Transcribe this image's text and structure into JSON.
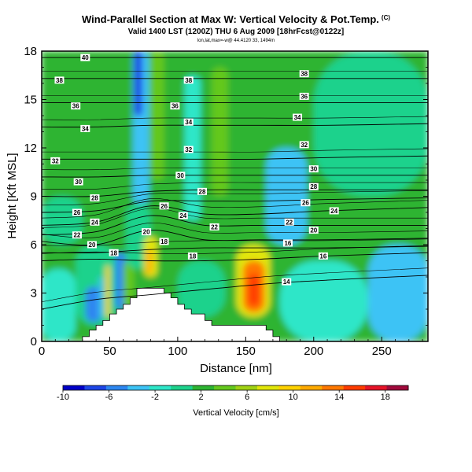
{
  "header": {
    "title": "Wind-Parallel Section at Max W: Vertical Velocity & Pot.Temp.",
    "title_mark": "(C)",
    "subtitle": "Valid 1400 LST (1200Z) THU 6 Aug 2009 [18hrFcst@0122z]",
    "info": "lon,lat,max=-w@ 44.4120 33, 1494m"
  },
  "chart_data": {
    "type": "heatmap",
    "title": "Wind-Parallel Section at Max W: Vertical Velocity & Pot.Temp.",
    "xlabel": "Distance [nm]",
    "ylabel": "Height [Kft MSL]",
    "xlim": [
      0,
      284
    ],
    "ylim": [
      0,
      18
    ],
    "x_ticks": [
      0,
      50,
      100,
      150,
      200,
      250
    ],
    "y_ticks": [
      0,
      3,
      6,
      9,
      12,
      15,
      18
    ],
    "colorbar": {
      "label": "Vertical Velocity [cm/s]",
      "tick_labels": [
        "-10",
        "-6",
        "-2",
        "2",
        "6",
        "10",
        "14",
        "18"
      ],
      "tick_values": [
        -10,
        -6,
        -2,
        2,
        6,
        10,
        14,
        18
      ],
      "range": [
        -10,
        20
      ],
      "colors": [
        "#0000c8",
        "#1e46e6",
        "#2d87f0",
        "#3cc3f5",
        "#2de6c8",
        "#1ed28c",
        "#2db432",
        "#64c81e",
        "#a0d214",
        "#e1e60a",
        "#ffd200",
        "#ffaa00",
        "#ff7800",
        "#ff3c00",
        "#e61428",
        "#a00a3c"
      ]
    },
    "terrain": [
      [
        0,
        0.0
      ],
      [
        10,
        0.0
      ],
      [
        20,
        0.0
      ],
      [
        30,
        0.3
      ],
      [
        35,
        0.7
      ],
      [
        40,
        1.0
      ],
      [
        45,
        1.3
      ],
      [
        50,
        1.7
      ],
      [
        55,
        2.0
      ],
      [
        60,
        2.3
      ],
      [
        65,
        2.7
      ],
      [
        70,
        3.3
      ],
      [
        75,
        3.3
      ],
      [
        80,
        3.3
      ],
      [
        85,
        3.3
      ],
      [
        90,
        3.0
      ],
      [
        95,
        2.7
      ],
      [
        100,
        2.3
      ],
      [
        105,
        2.0
      ],
      [
        110,
        1.7
      ],
      [
        115,
        1.7
      ],
      [
        120,
        1.3
      ],
      [
        125,
        1.0
      ],
      [
        130,
        1.0
      ],
      [
        135,
        1.0
      ],
      [
        140,
        1.0
      ],
      [
        145,
        1.0
      ],
      [
        150,
        1.0
      ],
      [
        155,
        1.0
      ],
      [
        160,
        1.0
      ],
      [
        165,
        0.7
      ],
      [
        170,
        0.3
      ],
      [
        175,
        0.0
      ],
      [
        284,
        0.0
      ]
    ],
    "theta_contours": [
      {
        "label": "14",
        "points": [
          [
            0,
            2.0
          ],
          [
            40,
            2.6
          ],
          [
            80,
            2.9
          ],
          [
            130,
            3.3
          ],
          [
            170,
            3.6
          ],
          [
            210,
            3.8
          ],
          [
            284,
            4.1
          ]
        ],
        "label_at": [
          180,
          3.7
        ]
      },
      {
        "label": "16",
        "points": [
          [
            0,
            5.0
          ],
          [
            40,
            5.1
          ],
          [
            80,
            5.0
          ],
          [
            120,
            5.0
          ],
          [
            160,
            5.1
          ],
          [
            210,
            5.3
          ],
          [
            284,
            5.5
          ]
        ],
        "label_at": [
          207,
          5.3
        ]
      },
      {
        "label": "18",
        "points": [
          [
            0,
            5.5
          ],
          [
            40,
            5.5
          ],
          [
            80,
            5.7
          ],
          [
            120,
            5.8
          ],
          [
            160,
            5.8
          ],
          [
            210,
            5.8
          ],
          [
            284,
            5.9
          ]
        ],
        "label_at": [
          118,
          5.8
        ]
      },
      {
        "label": "20",
        "points": [
          [
            0,
            6.2
          ],
          [
            40,
            6.0
          ],
          [
            80,
            6.9
          ],
          [
            120,
            6.3
          ],
          [
            160,
            6.3
          ],
          [
            210,
            6.3
          ],
          [
            284,
            6.4
          ]
        ],
        "label_at": [
          75,
          6.8
        ]
      },
      {
        "label": "22",
        "points": [
          [
            0,
            6.6
          ],
          [
            40,
            6.8
          ],
          [
            80,
            7.8
          ],
          [
            120,
            7.2
          ],
          [
            160,
            7.2
          ],
          [
            210,
            7.2
          ],
          [
            284,
            7.2
          ]
        ],
        "label_at": [
          127,
          7.1
        ]
      },
      {
        "label": "24",
        "points": [
          [
            0,
            7.2
          ],
          [
            40,
            7.4
          ],
          [
            80,
            8.4
          ],
          [
            120,
            7.9
          ],
          [
            160,
            7.9
          ],
          [
            210,
            8.1
          ],
          [
            284,
            8.3
          ]
        ],
        "label_at": [
          215,
          8.1
        ]
      },
      {
        "label": "26",
        "points": [
          [
            0,
            8.0
          ],
          [
            40,
            8.1
          ],
          [
            80,
            8.7
          ],
          [
            120,
            8.7
          ],
          [
            160,
            8.7
          ],
          [
            210,
            8.8
          ],
          [
            284,
            8.9
          ]
        ],
        "label_at": [
          181,
          8.6
        ]
      },
      {
        "label": "28",
        "points": [
          [
            0,
            9.0
          ],
          [
            40,
            9.0
          ],
          [
            80,
            9.3
          ],
          [
            120,
            9.4
          ],
          [
            160,
            9.4
          ],
          [
            210,
            9.4
          ],
          [
            284,
            9.4
          ]
        ],
        "label_at": [
          118,
          9.3
        ]
      },
      {
        "label": "30",
        "points": [
          [
            0,
            10.2
          ],
          [
            40,
            10.2
          ],
          [
            80,
            10.3
          ],
          [
            120,
            10.3
          ],
          [
            160,
            10.3
          ],
          [
            210,
            10.3
          ],
          [
            284,
            10.3
          ]
        ],
        "label_at": [
          102,
          10.3
        ]
      },
      {
        "label": "32",
        "points": [
          [
            0,
            11.3
          ],
          [
            40,
            11.3
          ],
          [
            80,
            11.3
          ],
          [
            120,
            11.3
          ],
          [
            160,
            11.3
          ],
          [
            210,
            11.4
          ],
          [
            284,
            11.5
          ]
        ],
        "label_at": [
          108,
          11.9
        ]
      },
      {
        "label": "34",
        "points": [
          [
            0,
            13.3
          ],
          [
            40,
            13.3
          ],
          [
            80,
            13.4
          ],
          [
            120,
            13.4
          ],
          [
            160,
            13.4
          ],
          [
            210,
            13.4
          ],
          [
            284,
            13.5
          ]
        ],
        "label_at": [
          108,
          13.6
        ]
      },
      {
        "label": "36",
        "points": [
          [
            0,
            14.8
          ],
          [
            40,
            14.8
          ],
          [
            80,
            14.8
          ],
          [
            120,
            14.8
          ],
          [
            160,
            14.8
          ],
          [
            210,
            14.8
          ],
          [
            284,
            14.8
          ]
        ],
        "label_at": [
          98,
          14.6
        ]
      },
      {
        "label": "38",
        "points": [
          [
            0,
            16.3
          ],
          [
            40,
            16.3
          ],
          [
            80,
            16.3
          ],
          [
            120,
            16.3
          ],
          [
            160,
            16.3
          ],
          [
            210,
            16.3
          ],
          [
            284,
            16.3
          ]
        ],
        "label_at": [
          108,
          16.2
        ]
      },
      {
        "label": "40",
        "points": [
          [
            0,
            17.6
          ],
          [
            40,
            17.6
          ],
          [
            80,
            17.6
          ],
          [
            120,
            17.6
          ],
          [
            160,
            17.6
          ],
          [
            210,
            17.6
          ],
          [
            284,
            17.6
          ]
        ],
        "label_at": [
          32,
          17.6
        ]
      }
    ],
    "contour_labels": [
      {
        "text": "40",
        "x": 32,
        "y": 17.6
      },
      {
        "text": "38",
        "x": 13,
        "y": 16.2
      },
      {
        "text": "38",
        "x": 108,
        "y": 16.2
      },
      {
        "text": "38",
        "x": 193,
        "y": 16.6
      },
      {
        "text": "36",
        "x": 25,
        "y": 14.6
      },
      {
        "text": "36",
        "x": 98,
        "y": 14.6
      },
      {
        "text": "36",
        "x": 193,
        "y": 15.2
      },
      {
        "text": "34",
        "x": 32,
        "y": 13.2
      },
      {
        "text": "34",
        "x": 108,
        "y": 13.6
      },
      {
        "text": "34",
        "x": 188,
        "y": 13.9
      },
      {
        "text": "32",
        "x": 10,
        "y": 11.2
      },
      {
        "text": "32",
        "x": 108,
        "y": 11.9
      },
      {
        "text": "32",
        "x": 193,
        "y": 12.2
      },
      {
        "text": "30",
        "x": 27,
        "y": 9.9
      },
      {
        "text": "30",
        "x": 102,
        "y": 10.3
      },
      {
        "text": "30",
        "x": 200,
        "y": 10.7
      },
      {
        "text": "28",
        "x": 39,
        "y": 8.9
      },
      {
        "text": "28",
        "x": 118,
        "y": 9.3
      },
      {
        "text": "28",
        "x": 200,
        "y": 9.6
      },
      {
        "text": "26",
        "x": 26,
        "y": 8.0
      },
      {
        "text": "26",
        "x": 90,
        "y": 8.4
      },
      {
        "text": "26",
        "x": 194,
        "y": 8.6
      },
      {
        "text": "24",
        "x": 39,
        "y": 7.4
      },
      {
        "text": "24",
        "x": 104,
        "y": 7.8
      },
      {
        "text": "24",
        "x": 215,
        "y": 8.1
      },
      {
        "text": "22",
        "x": 26,
        "y": 6.6
      },
      {
        "text": "22",
        "x": 127,
        "y": 7.1
      },
      {
        "text": "22",
        "x": 182,
        "y": 7.4
      },
      {
        "text": "20",
        "x": 37,
        "y": 6.0
      },
      {
        "text": "20",
        "x": 77,
        "y": 6.8
      },
      {
        "text": "20",
        "x": 200,
        "y": 6.9
      },
      {
        "text": "18",
        "x": 53,
        "y": 5.5
      },
      {
        "text": "18",
        "x": 90,
        "y": 6.2
      },
      {
        "text": "18",
        "x": 111,
        "y": 5.3
      },
      {
        "text": "16",
        "x": 181,
        "y": 6.1
      },
      {
        "text": "16",
        "x": 207,
        "y": 5.3
      },
      {
        "text": "14",
        "x": 180,
        "y": 3.7
      }
    ],
    "velocity_features": [
      {
        "x": 0,
        "y": 0,
        "w": 284,
        "h": 18,
        "value": 2
      },
      {
        "x": 0,
        "y": 9,
        "w": 60,
        "h": 5,
        "value": 3
      },
      {
        "x": 0,
        "y": 6,
        "w": 30,
        "h": 3,
        "value": 0
      },
      {
        "x": 0,
        "y": 0,
        "w": 25,
        "h": 4.5,
        "value": -1.5
      },
      {
        "x": 25,
        "y": 1,
        "w": 30,
        "h": 5,
        "value": 0
      },
      {
        "x": 32,
        "y": 1.2,
        "w": 12,
        "h": 2.2,
        "value": -6
      },
      {
        "x": 47,
        "y": 1.5,
        "w": 3,
        "h": 3.2,
        "value": 10
      },
      {
        "x": 42,
        "y": 1.5,
        "w": 3,
        "h": 2.5,
        "value": -3
      },
      {
        "x": 54,
        "y": 2,
        "w": 8,
        "h": 3.5,
        "value": -6
      },
      {
        "x": 60,
        "y": 2,
        "w": 8,
        "h": 3,
        "value": 4
      },
      {
        "x": 62,
        "y": 4.5,
        "w": 18,
        "h": 4,
        "value": 0
      },
      {
        "x": 67,
        "y": 8.5,
        "w": 12,
        "h": 9.5,
        "value": -4
      },
      {
        "x": 68,
        "y": 14,
        "w": 6,
        "h": 4,
        "value": -8
      },
      {
        "x": 80,
        "y": 10,
        "w": 10,
        "h": 8,
        "value": 4
      },
      {
        "x": 75,
        "y": 4,
        "w": 10,
        "h": 2.5,
        "value": 8
      },
      {
        "x": 77,
        "y": 4.2,
        "w": 4,
        "h": 1.5,
        "value": 11
      },
      {
        "x": 85,
        "y": 3.5,
        "w": 30,
        "h": 2.5,
        "value": 3
      },
      {
        "x": 100,
        "y": 1.5,
        "w": 35,
        "h": 3.5,
        "value": 0
      },
      {
        "x": 105,
        "y": 7.5,
        "w": 12,
        "h": 9,
        "value": -2
      },
      {
        "x": 125,
        "y": 9,
        "w": 12,
        "h": 8,
        "value": 4
      },
      {
        "x": 140,
        "y": 1,
        "w": 40,
        "h": 5,
        "value": 3
      },
      {
        "x": 143,
        "y": 1.5,
        "w": 25,
        "h": 4.5,
        "value": 8
      },
      {
        "x": 148,
        "y": 1.8,
        "w": 16,
        "h": 3.2,
        "value": 13
      },
      {
        "x": 152,
        "y": 2.2,
        "w": 8,
        "h": 2,
        "value": 16
      },
      {
        "x": 165,
        "y": 6,
        "w": 30,
        "h": 6,
        "value": -3
      },
      {
        "x": 175,
        "y": 0,
        "w": 65,
        "h": 5,
        "value": -2
      },
      {
        "x": 200,
        "y": 9,
        "w": 84,
        "h": 9,
        "value": 0
      },
      {
        "x": 240,
        "y": 0,
        "w": 44,
        "h": 6,
        "value": -3
      }
    ]
  }
}
